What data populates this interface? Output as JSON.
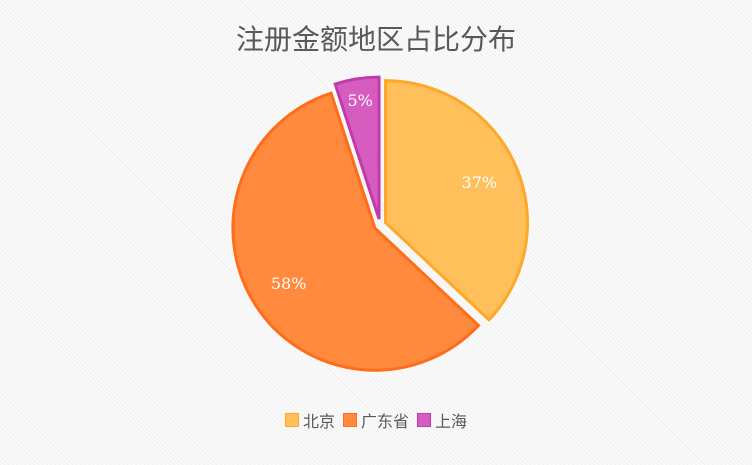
{
  "chart_data": {
    "type": "pie",
    "title": "注册金额地区占比分布",
    "categories": [
      "北京",
      "广东省",
      "上海"
    ],
    "values": [
      37,
      58,
      5
    ],
    "data_labels": [
      "37%",
      "58%",
      "5%"
    ],
    "colors": [
      "#ffc05c",
      "#ff8a3d",
      "#d65cc0"
    ],
    "border_colors": [
      "#ffa726",
      "#ff6d1a",
      "#c23aaa"
    ],
    "exploded": true,
    "legend_position": "bottom"
  }
}
